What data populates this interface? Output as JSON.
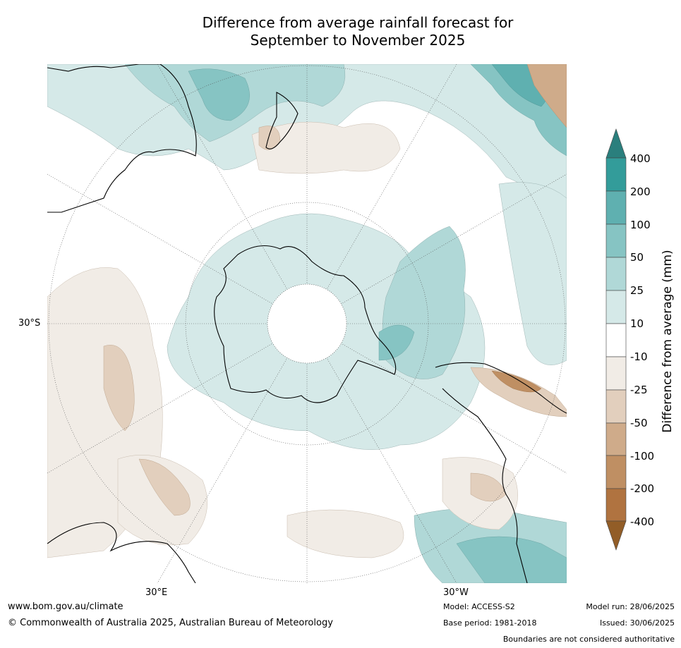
{
  "title": {
    "line1": "Difference from average rainfall forecast for",
    "line2": "September to November 2025"
  },
  "map": {
    "projection": "south-polar-stereographic",
    "lat_label": "30°S",
    "lon_labels": {
      "left": "30°E",
      "right": "30°W"
    },
    "colors": {
      "wet_400": "#2a7f7d",
      "wet_200": "#339c9a",
      "wet_100": "#5fb0b0",
      "wet_50": "#86c4c3",
      "wet_25": "#b0d8d7",
      "wet_10": "#d5e9e8",
      "neutral": "#ffffff",
      "dry_10": "#f1ece6",
      "dry_25": "#e2cfbd",
      "dry_50": "#cfab8a",
      "dry_100": "#bf8f63",
      "dry_200": "#b07340",
      "dry_400": "#925d27"
    }
  },
  "colorbar": {
    "title": "Difference from average (mm)",
    "tick_labels": [
      "400",
      "200",
      "100",
      "50",
      "25",
      "10",
      "-10",
      "-25",
      "-50",
      "-100",
      "-200",
      "-400"
    ]
  },
  "footer": {
    "website": "www.bom.gov.au/climate",
    "copyright": "© Commonwealth of Australia 2025, Australian Bureau of Meteorology",
    "model": "Model: ACCESS-S2",
    "base_period": "Base period: 1981-2018",
    "model_run": "Model run: 28/06/2025",
    "issued": "Issued: 30/06/2025",
    "disclaimer": "Boundaries are not considered authoritative"
  }
}
